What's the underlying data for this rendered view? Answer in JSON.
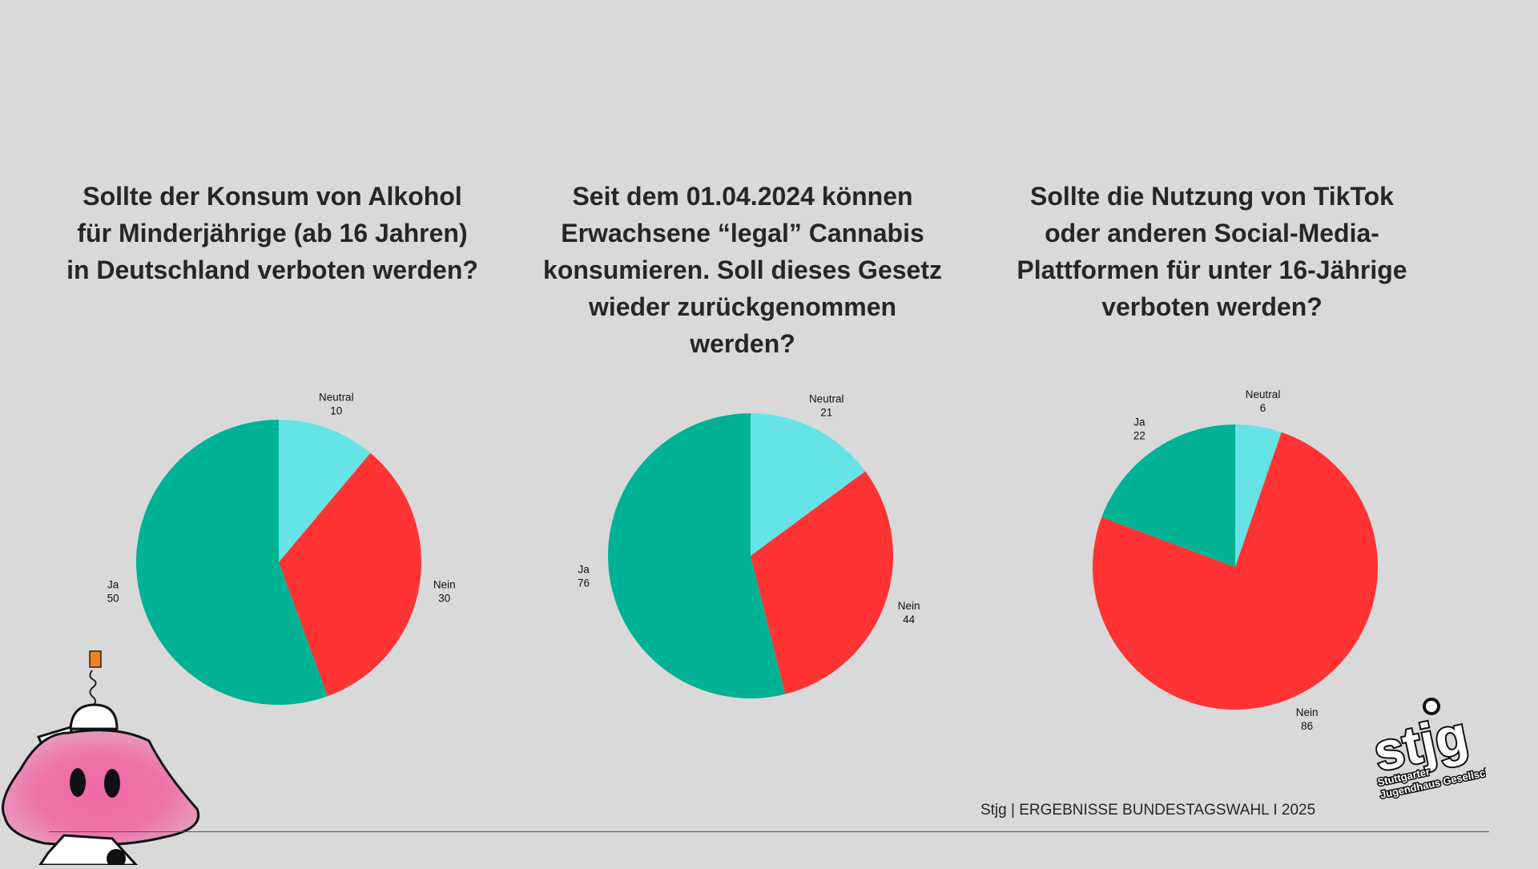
{
  "colors": {
    "ja": "#00b294",
    "nein": "#ff3333",
    "neutral": "#66e3e6",
    "background": "#d9d9d9"
  },
  "chart_data": [
    {
      "type": "pie",
      "title": "Sollte der Konsum von Alkohol für Minderjährige (ab 16 Jahren) in Deutschland verboten werden?",
      "slices": [
        {
          "label": "Neutral",
          "value": 10,
          "color": "#66e3e6"
        },
        {
          "label": "Nein",
          "value": 30,
          "color": "#ff3333"
        },
        {
          "label": "Ja",
          "value": 50,
          "color": "#00b294"
        }
      ]
    },
    {
      "type": "pie",
      "title": "Seit dem 01.04.2024 können Erwachsene “legal” Cannabis konsumieren. Soll dieses Gesetz wieder zurückgenommen werden?",
      "slices": [
        {
          "label": "Neutral",
          "value": 21,
          "color": "#66e3e6"
        },
        {
          "label": "Nein",
          "value": 44,
          "color": "#ff3333"
        },
        {
          "label": "Ja",
          "value": 76,
          "color": "#00b294"
        }
      ]
    },
    {
      "type": "pie",
      "title": "Sollte die Nutzung von TikTok oder anderen Social-Media-Plattformen für unter 16-Jährige verboten werden?",
      "slices": [
        {
          "label": "Neutral",
          "value": 6,
          "color": "#66e3e6"
        },
        {
          "label": "Nein",
          "value": 86,
          "color": "#ff3333"
        },
        {
          "label": "Ja",
          "value": 22,
          "color": "#00b294"
        }
      ]
    }
  ],
  "footer": "Stjg | ERGEBNISSE BUNDESTAGSWAHL I 2025",
  "logo": {
    "main": "stjg",
    "line1": "Stuttgarter",
    "line2": "Jugendhaus Gesellschaft"
  }
}
